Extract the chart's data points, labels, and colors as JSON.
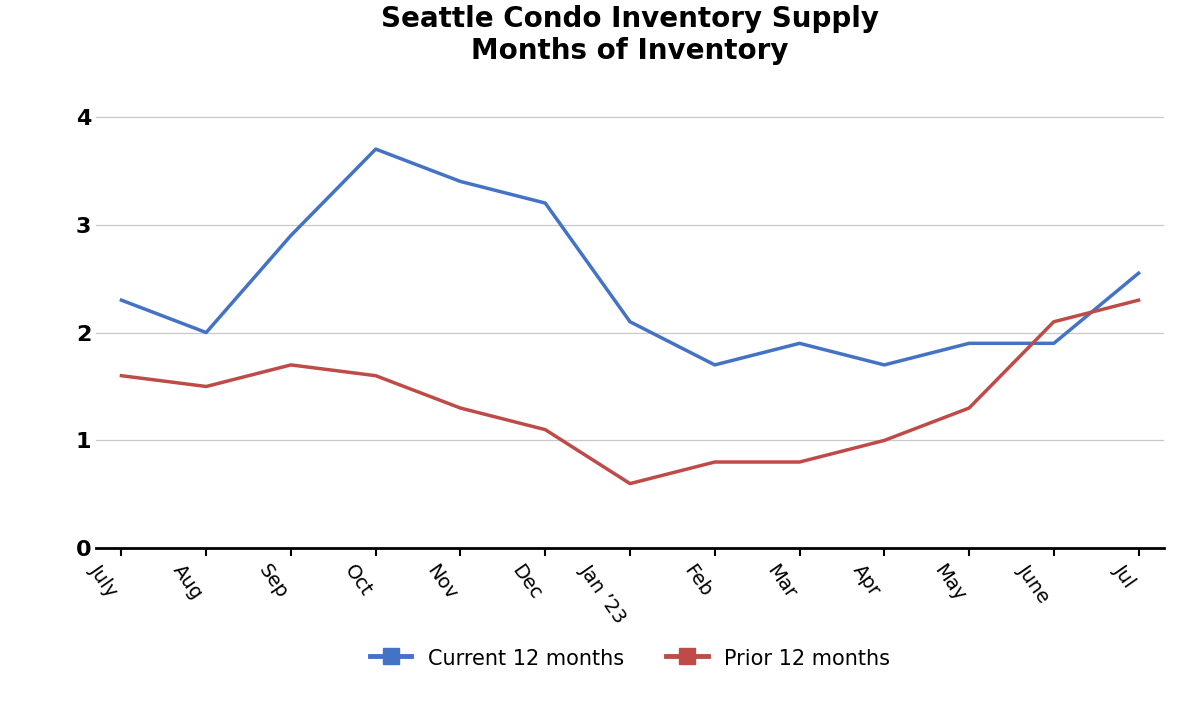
{
  "title": "Seattle Condo Inventory Supply\nMonths of Inventory",
  "categories": [
    "July",
    "Aug",
    "Sep",
    "Oct",
    "Nov",
    "Dec",
    "Jan ’23",
    "Feb",
    "Mar",
    "Apr",
    "May",
    "June",
    "Jul"
  ],
  "current_12": [
    2.3,
    2.0,
    2.9,
    3.7,
    3.4,
    3.2,
    2.1,
    1.7,
    1.9,
    1.7,
    1.9,
    1.9,
    2.55
  ],
  "prior_12": [
    1.6,
    1.5,
    1.7,
    1.6,
    1.3,
    1.1,
    0.6,
    0.8,
    0.8,
    1.0,
    1.3,
    2.1,
    2.3
  ],
  "current_color": "#4472C4",
  "prior_color": "#BE4B48",
  "ylim": [
    0,
    4.3
  ],
  "yticks": [
    0,
    1,
    2,
    3,
    4
  ],
  "background_color": "#ffffff",
  "title_fontsize": 20,
  "legend_label_current": "Current 12 months",
  "legend_label_prior": "Prior 12 months",
  "line_width": 2.5,
  "tick_rotation": -55
}
